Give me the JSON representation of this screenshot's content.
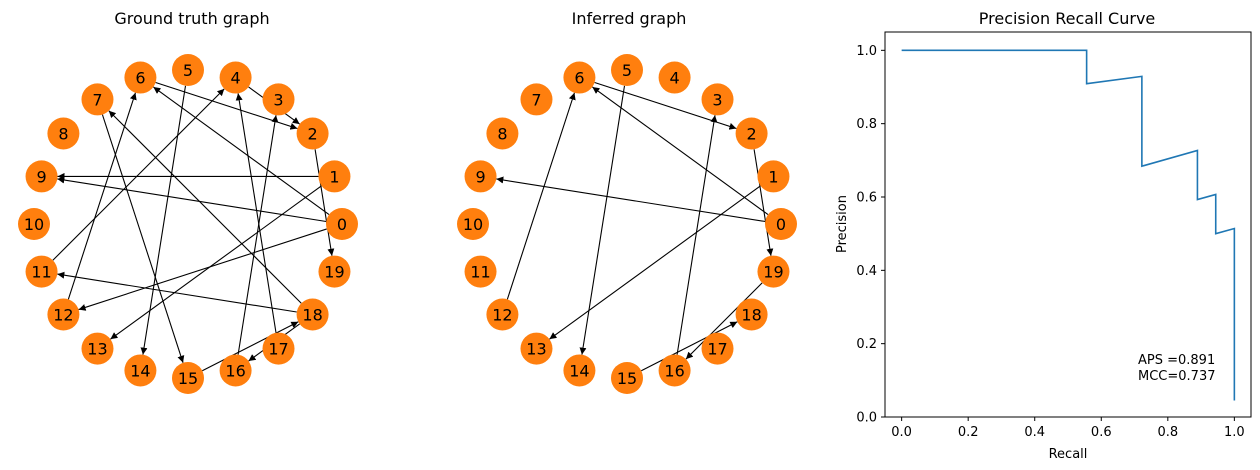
{
  "colors": {
    "node": "#ff7f0e",
    "edge": "#000000",
    "curve": "#1f77b4",
    "axes": "#000000"
  },
  "chart_data": [
    {
      "type": "network",
      "title": "Ground truth graph",
      "nodes": [
        "0",
        "1",
        "2",
        "3",
        "4",
        "5",
        "6",
        "7",
        "8",
        "9",
        "10",
        "11",
        "12",
        "13",
        "14",
        "15",
        "16",
        "17",
        "18",
        "19"
      ],
      "edges": [
        [
          "0",
          "9"
        ],
        [
          "0",
          "6"
        ],
        [
          "0",
          "12"
        ],
        [
          "1",
          "9"
        ],
        [
          "1",
          "13"
        ],
        [
          "2",
          "19"
        ],
        [
          "4",
          "2"
        ],
        [
          "5",
          "14"
        ],
        [
          "6",
          "2"
        ],
        [
          "7",
          "15"
        ],
        [
          "11",
          "4"
        ],
        [
          "12",
          "6"
        ],
        [
          "15",
          "18"
        ],
        [
          "16",
          "3"
        ],
        [
          "17",
          "4"
        ],
        [
          "18",
          "11"
        ],
        [
          "18",
          "16"
        ],
        [
          "18",
          "7"
        ]
      ]
    },
    {
      "type": "network",
      "title": "Inferred graph",
      "nodes": [
        "0",
        "1",
        "2",
        "3",
        "4",
        "5",
        "6",
        "7",
        "8",
        "9",
        "10",
        "11",
        "12",
        "13",
        "14",
        "15",
        "16",
        "17",
        "18",
        "19"
      ],
      "edges": [
        [
          "0",
          "9"
        ],
        [
          "0",
          "6"
        ],
        [
          "1",
          "13"
        ],
        [
          "2",
          "19"
        ],
        [
          "5",
          "14"
        ],
        [
          "6",
          "2"
        ],
        [
          "12",
          "6"
        ],
        [
          "15",
          "18"
        ],
        [
          "16",
          "3"
        ],
        [
          "19",
          "16"
        ]
      ]
    },
    {
      "type": "line",
      "title": "Precision Recall Curve",
      "xlabel": "Recall",
      "ylabel": "Precision",
      "xlim": [
        -0.05,
        1.05
      ],
      "ylim": [
        0.0,
        1.05
      ],
      "xticks": [
        "0.0",
        "0.2",
        "0.4",
        "0.6",
        "0.8",
        "1.0"
      ],
      "yticks": [
        "0.0",
        "0.2",
        "0.4",
        "0.6",
        "0.8",
        "1.0"
      ],
      "series": [
        {
          "x": [
            0.0,
            0.556,
            0.556,
            0.722,
            0.722,
            0.889,
            0.889,
            0.944,
            0.944,
            1.0,
            1.0
          ],
          "y": [
            1.0,
            1.0,
            0.909,
            0.929,
            0.684,
            0.727,
            0.593,
            0.607,
            0.5,
            0.514,
            0.045
          ]
        }
      ],
      "annotations": [
        "APS =0.891",
        "MCC=0.737"
      ]
    }
  ]
}
